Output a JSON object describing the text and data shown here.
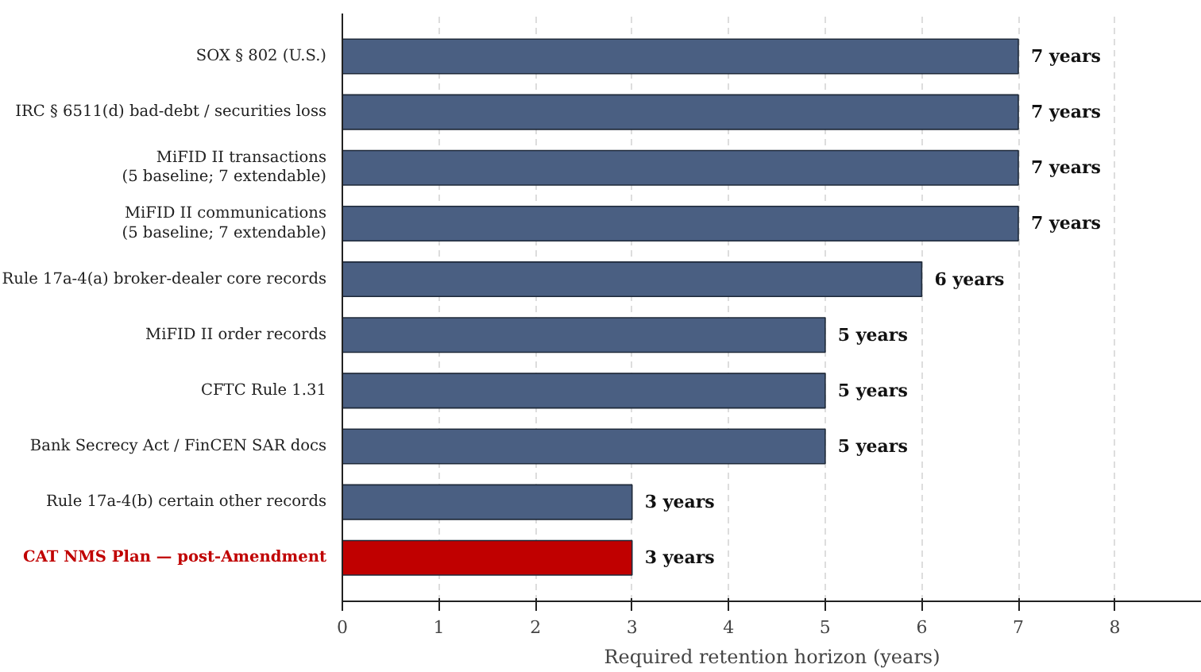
{
  "chart_data": {
    "type": "bar",
    "orientation": "horizontal",
    "xlabel": "Required retention horizon (years)",
    "categories": [
      "SOX § 802 (U.S.)",
      "IRC § 6511(d) bad-debt / securities loss",
      "MiFID II transactions\n(5 baseline; 7 extendable)",
      "MiFID II communications\n(5 baseline; 7 extendable)",
      "Rule 17a-4(a) broker-dealer core records",
      "MiFID II order records",
      "CFTC Rule 1.31",
      "Bank Secrecy Act / FinCEN SAR docs",
      "Rule 17a-4(b) certain other records",
      "CAT NMS Plan — post-Amendment"
    ],
    "values": [
      7,
      7,
      7,
      7,
      6,
      5,
      5,
      5,
      3,
      3
    ],
    "colors": [
      "#4a5f82",
      "#4a5f82",
      "#4a5f82",
      "#4a5f82",
      "#4a5f82",
      "#4a5f82",
      "#4a5f82",
      "#4a5f82",
      "#4a5f82",
      "#c00000"
    ],
    "value_labels": [
      "7 years",
      "7 years",
      "7 years",
      "7 years",
      "6 years",
      "5 years",
      "5 years",
      "5 years",
      "3 years",
      "3 years"
    ],
    "xlim": [
      0,
      8.9
    ],
    "xticks": [
      0,
      1,
      2,
      3,
      4,
      5,
      6,
      7,
      8
    ],
    "grid": "x"
  }
}
